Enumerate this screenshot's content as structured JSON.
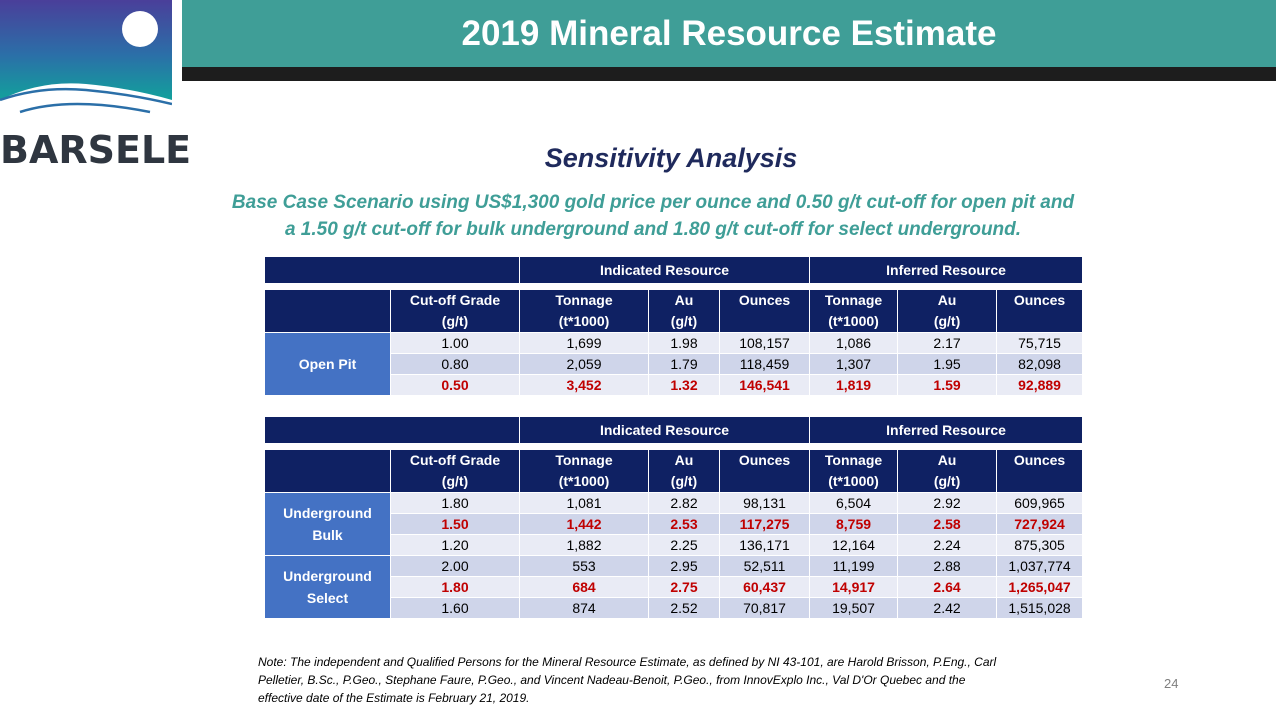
{
  "brand": {
    "name": "BARSELE"
  },
  "title": "2019 Mineral Resource Estimate",
  "heading": "Sensitivity Analysis",
  "subtitle_lines": [
    "Base Case Scenario using US$1,300 gold price per ounce and 0.50 g/t cut-off for open pit and",
    "a 1.50 g/t cut-off for bulk underground and 1.80 g/t cut-off  for select underground."
  ],
  "tables": [
    {
      "group_headers": [
        "Indicated Resource",
        "Inferred Resource"
      ],
      "columns": [
        {
          "line1": "Cut-off Grade",
          "line2": "(g/t)"
        },
        {
          "line1": "Tonnage",
          "line2": "(t*1000)"
        },
        {
          "line1": "Au",
          "line2": "(g/t)"
        },
        {
          "line1": "Ounces",
          "line2": ""
        },
        {
          "line1": "Tonnage",
          "line2": "(t*1000)"
        },
        {
          "line1": "Au",
          "line2": "(g/t)"
        },
        {
          "line1": "Ounces",
          "line2": ""
        }
      ],
      "categories": [
        {
          "label_lines": [
            "Open Pit"
          ],
          "rows": [
            {
              "cells": [
                "1.00",
                "1,699",
                "1.98",
                "108,157",
                "1,086",
                "2.17",
                "75,715"
              ],
              "base": false
            },
            {
              "cells": [
                "0.80",
                "2,059",
                "1.79",
                "118,459",
                "1,307",
                "1.95",
                "82,098"
              ],
              "base": false
            },
            {
              "cells": [
                "0.50",
                "3,452",
                "1.32",
                "146,541",
                "1,819",
                "1.59",
                "92,889"
              ],
              "base": true
            }
          ]
        }
      ]
    },
    {
      "group_headers": [
        "Indicated Resource",
        "Inferred Resource"
      ],
      "columns": [
        {
          "line1": "Cut-off Grade",
          "line2": "(g/t)"
        },
        {
          "line1": "Tonnage",
          "line2": "(t*1000)"
        },
        {
          "line1": "Au",
          "line2": "(g/t)"
        },
        {
          "line1": "Ounces",
          "line2": ""
        },
        {
          "line1": "Tonnage",
          "line2": "(t*1000)"
        },
        {
          "line1": "Au",
          "line2": "(g/t)"
        },
        {
          "line1": "Ounces",
          "line2": ""
        }
      ],
      "categories": [
        {
          "label_lines": [
            "Underground",
            "Bulk"
          ],
          "rows": [
            {
              "cells": [
                "1.80",
                "1,081",
                "2.82",
                "98,131",
                "6,504",
                "2.92",
                "609,965"
              ],
              "base": false
            },
            {
              "cells": [
                "1.50",
                "1,442",
                "2.53",
                "117,275",
                "8,759",
                "2.58",
                "727,924"
              ],
              "base": true
            },
            {
              "cells": [
                "1.20",
                "1,882",
                "2.25",
                "136,171",
                "12,164",
                "2.24",
                "875,305"
              ],
              "base": false
            }
          ]
        },
        {
          "label_lines": [
            "Underground",
            "Select"
          ],
          "rows": [
            {
              "cells": [
                "2.00",
                "553",
                "2.95",
                "52,511",
                "11,199",
                "2.88",
                "1,037,774"
              ],
              "base": false
            },
            {
              "cells": [
                "1.80",
                "684",
                "2.75",
                "60,437",
                "14,917",
                "2.64",
                "1,265,047"
              ],
              "base": true
            },
            {
              "cells": [
                "1.60",
                "874",
                "2.52",
                "70,817",
                "19,507",
                "2.42",
                "1,515,028"
              ],
              "base": false
            }
          ]
        }
      ]
    }
  ],
  "note_lines": [
    "Note: The independent and Qualified Persons for the Mineral Resource Estimate, as defined by NI 43-101, are Harold Brisson, P.Eng.,  Carl",
    "Pelletier, B.Sc., P.Geo., Stephane Faure, P.Geo., and Vincent Nadeau-Benoit, P.Geo., from  InnovExplo Inc., Val D'Or Quebec and the",
    "effective date of the Estimate is February 21, 2019."
  ],
  "page_number": "24",
  "colors": {
    "teal": "#3f9e97",
    "navy_header": "#0f2163",
    "category_blue": "#4472c4",
    "base_case_red": "#c00000"
  }
}
